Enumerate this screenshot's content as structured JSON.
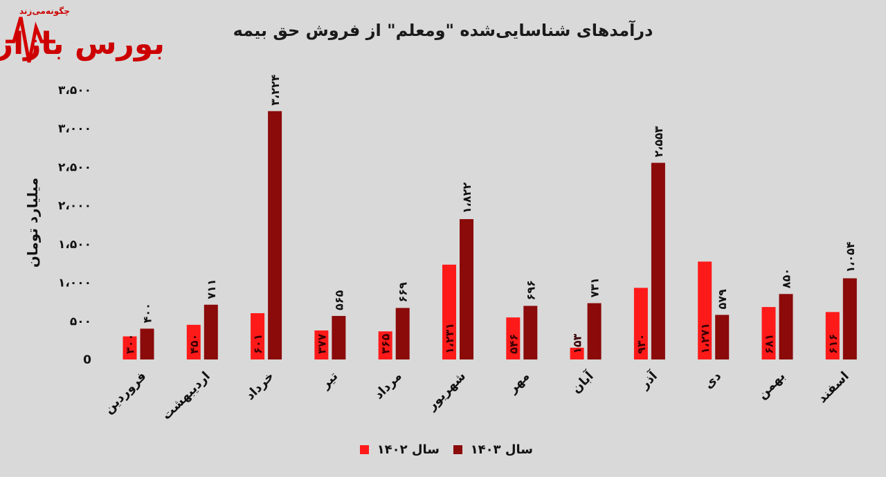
{
  "logo": {
    "tagline": "چگونه‌می‌زند",
    "name": "بورس بازار"
  },
  "chart_data": {
    "type": "bar",
    "title": "درآمدهای شناسایی‌شده \"ومعلم\" از فروش حق بیمه",
    "ylabel": "میلیارد تومان",
    "ylim": [
      0,
      3500
    ],
    "yticks": [
      0,
      500,
      1000,
      1500,
      2000,
      2500,
      3000,
      3500
    ],
    "ytick_labels": [
      "0",
      "۵۰۰",
      "۱،۰۰۰",
      "۱،۵۰۰",
      "۲،۰۰۰",
      "۲،۵۰۰",
      "۳،۰۰۰",
      "۳،۵۰۰"
    ],
    "categories": [
      "فروردین",
      "اردیبهشت",
      "خرداد",
      "تیر",
      "مرداد",
      "شهریور",
      "مهر",
      "آبان",
      "آذر",
      "دی",
      "بهمن",
      "اسفند"
    ],
    "series": [
      {
        "name": "سال ۱۴۰۲",
        "color": "#ff1a1a",
        "values": [
          300,
          450,
          601,
          377,
          365,
          1231,
          546,
          153,
          930,
          1271,
          681,
          616
        ],
        "labels": [
          "۳۰۰",
          "۴۵۰",
          "۶۰۱",
          "۳۷۷",
          "۳۶۵",
          "۱،۲۳۱",
          "۵۴۶",
          "۱۵۳",
          "۹۳۰",
          "۱،۲۷۱",
          "۶۸۱",
          "۶۱۶"
        ]
      },
      {
        "name": "سال ۱۴۰۳",
        "color": "#8b0a0a",
        "values": [
          400,
          711,
          3224,
          565,
          669,
          1822,
          696,
          731,
          2553,
          579,
          850,
          1054
        ],
        "labels": [
          "۴۰۰",
          "۷۱۱",
          "۳،۲۲۴",
          "۵۶۵",
          "۶۶۹",
          "۱،۸۲۲",
          "۶۹۶",
          "۷۳۱",
          "۲،۵۵۳",
          "۵۷۹",
          "۸۵۰",
          "۱،۰۵۴"
        ]
      }
    ],
    "grid": false,
    "legend": "bottom-center"
  }
}
